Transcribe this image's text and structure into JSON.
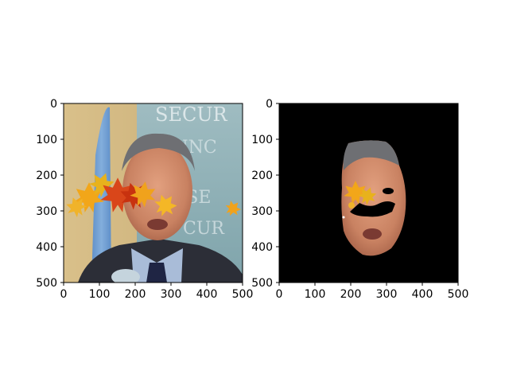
{
  "chart_data": [
    {
      "type": "image",
      "content": "photo of a man's face in front of a 'SECURITY COUNCIL' backdrop and a blue flag, with autumn maple leaves overlaid across the eyes",
      "backdrop_text": "SECUR",
      "xlim": [
        0,
        500
      ],
      "ylim": [
        500,
        0
      ],
      "xticks": [
        0,
        100,
        200,
        300,
        400,
        500
      ],
      "yticks": [
        0,
        100,
        200,
        300,
        400,
        500
      ],
      "leaf_colors": [
        "#f2a619",
        "#d9461a",
        "#e8b21c",
        "#c8320f"
      ]
    },
    {
      "type": "image",
      "content": "segmented face region on black background, with leaf occlusion over the eyes and black holes where the leaves block the face",
      "xlim": [
        0,
        500
      ],
      "ylim": [
        500,
        0
      ],
      "xticks": [
        0,
        100,
        200,
        300,
        400,
        500
      ],
      "yticks": [
        0,
        100,
        200,
        300,
        400,
        500
      ],
      "background_color": "#000000"
    }
  ]
}
